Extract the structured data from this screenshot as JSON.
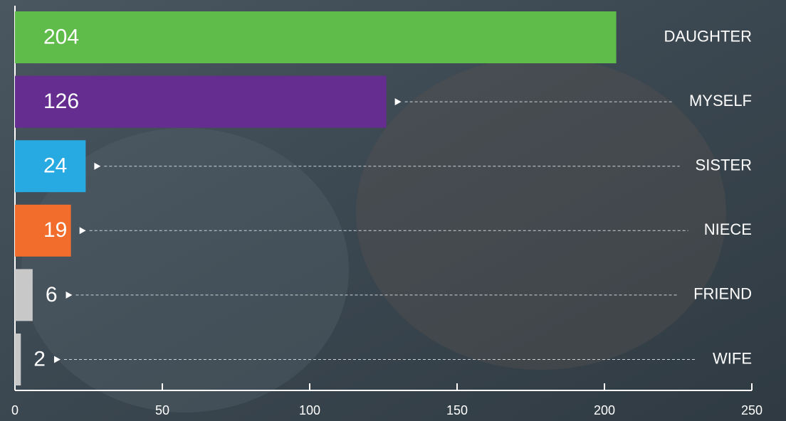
{
  "chart_data": {
    "type": "bar",
    "orientation": "horizontal",
    "categories": [
      "DAUGHTER",
      "MYSELF",
      "SISTER",
      "NIECE",
      "FRIEND",
      "WIFE"
    ],
    "values": [
      204,
      126,
      24,
      19,
      6,
      2
    ],
    "colors": [
      "#5fbb4a",
      "#662d91",
      "#27aae1",
      "#f26d2b",
      "#c8c8c8",
      "#c8c8c8"
    ],
    "xlim": [
      0,
      250
    ],
    "xticks": [
      0,
      50,
      100,
      150,
      200,
      250
    ]
  }
}
